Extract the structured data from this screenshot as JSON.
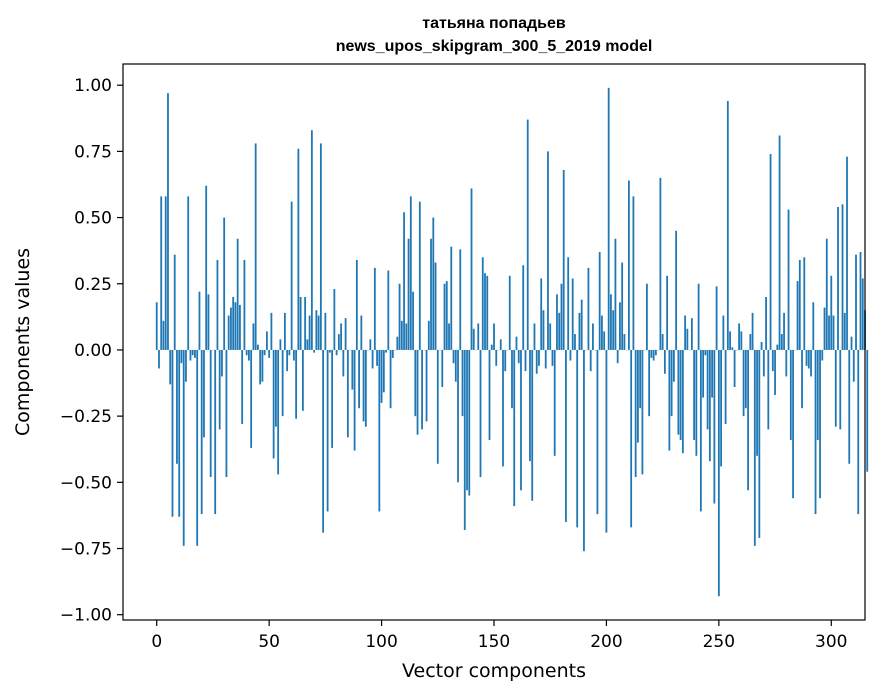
{
  "chart_data": {
    "type": "bar",
    "title": "татьяна попадьев",
    "subtitle": "news_upos_skipgram_300_5_2019 model",
    "xlabel": "Vector components",
    "ylabel": "Components values",
    "xlim": [
      -15,
      315
    ],
    "ylim": [
      -1.02,
      1.08
    ],
    "x_ticks": [
      "0",
      "50",
      "100",
      "150",
      "200",
      "250",
      "300"
    ],
    "x_tick_values": [
      0,
      50,
      100,
      150,
      200,
      250,
      300
    ],
    "y_ticks": [
      "1.00",
      "0.75",
      "0.50",
      "0.25",
      "0.00",
      "−0.25",
      "−0.50",
      "−0.75",
      "−1.00"
    ],
    "y_tick_values": [
      1.0,
      0.75,
      0.5,
      0.25,
      0.0,
      -0.25,
      -0.5,
      -0.75,
      -1.0
    ],
    "grid": false,
    "bar_color": "#1f77b4",
    "values": [
      0.18,
      -0.07,
      0.58,
      0.11,
      0.58,
      0.97,
      -0.13,
      -0.63,
      0.36,
      -0.43,
      -0.63,
      -0.05,
      -0.74,
      -0.12,
      0.58,
      -0.04,
      -0.02,
      -0.03,
      -0.74,
      0.22,
      -0.62,
      -0.33,
      0.62,
      0.21,
      -0.48,
      0.0,
      -0.62,
      0.34,
      -0.3,
      -0.1,
      0.5,
      -0.48,
      0.13,
      0.16,
      0.2,
      0.18,
      0.42,
      0.17,
      -0.28,
      0.34,
      -0.02,
      -0.04,
      -0.37,
      0.1,
      0.78,
      0.02,
      -0.13,
      -0.12,
      -0.02,
      0.07,
      -0.03,
      0.14,
      -0.41,
      -0.29,
      -0.47,
      0.04,
      -0.25,
      0.14,
      -0.08,
      -0.02,
      0.56,
      -0.04,
      -0.26,
      0.76,
      0.2,
      -0.23,
      0.2,
      0.04,
      0.13,
      0.83,
      -0.01,
      0.15,
      0.13,
      0.78,
      -0.69,
      0.14,
      -0.61,
      -0.01,
      -0.37,
      0.23,
      -0.02,
      0.06,
      0.1,
      -0.1,
      0.12,
      -0.33,
      0.0,
      -0.15,
      -0.38,
      0.34,
      -0.22,
      0.13,
      -0.27,
      -0.29,
      0.0,
      0.04,
      -0.07,
      0.31,
      -0.06,
      -0.61,
      -0.2,
      -0.16,
      -0.01,
      0.3,
      -0.22,
      -0.03,
      0.0,
      0.05,
      0.25,
      0.11,
      0.52,
      0.1,
      0.42,
      0.58,
      0.22,
      -0.25,
      -0.32,
      0.56,
      -0.3,
      0.0,
      -0.27,
      0.11,
      0.42,
      0.5,
      0.33,
      -0.43,
      0.0,
      -0.14,
      0.25,
      0.26,
      0.1,
      0.39,
      -0.05,
      -0.12,
      -0.5,
      0.38,
      -0.25,
      -0.68,
      -0.53,
      -0.55,
      0.61,
      0.08,
      0.0,
      0.1,
      -0.48,
      0.35,
      0.29,
      0.28,
      -0.34,
      0.02,
      0.1,
      -0.06,
      0.0,
      0.04,
      -0.44,
      -0.08,
      0.0,
      0.28,
      -0.22,
      -0.59,
      0.05,
      -0.05,
      -0.53,
      0.32,
      -0.08,
      0.87,
      -0.42,
      -0.57,
      0.1,
      -0.09,
      -0.06,
      0.27,
      0.15,
      -0.07,
      0.75,
      0.1,
      -0.06,
      -0.4,
      0.21,
      0.14,
      0.25,
      0.68,
      -0.65,
      0.35,
      -0.04,
      0.27,
      0.06,
      -0.67,
      0.14,
      0.19,
      -0.76,
      0.0,
      0.31,
      -0.08,
      0.1,
      0.0,
      -0.62,
      0.37,
      0.13,
      0.07,
      -0.69,
      0.99,
      0.21,
      0.15,
      0.42,
      -0.05,
      0.18,
      0.33,
      0.06,
      0.0,
      0.64,
      -0.67,
      0.58,
      -0.48,
      -0.35,
      -0.22,
      -0.47,
      0.0,
      0.25,
      -0.25,
      -0.03,
      -0.04,
      -0.02,
      0.0,
      0.65,
      0.06,
      -0.09,
      0.28,
      -0.38,
      -0.25,
      -0.12,
      0.45,
      -0.32,
      -0.34,
      -0.39,
      0.13,
      0.08,
      0.0,
      0.12,
      -0.34,
      -0.4,
      0.25,
      -0.61,
      -0.18,
      -0.02,
      -0.3,
      -0.42,
      -0.18,
      -0.58,
      0.24,
      -0.93,
      -0.44,
      0.13,
      -0.28,
      0.94,
      0.07,
      0.01,
      -0.14,
      0.0,
      0.1,
      0.07,
      -0.25,
      -0.22,
      -0.53,
      0.06,
      0.14,
      -0.74,
      -0.4,
      -0.71,
      0.03,
      -0.1,
      0.2,
      -0.3,
      0.74,
      -0.08,
      -0.17,
      0.02,
      0.81,
      0.06,
      0.14,
      -0.1,
      0.53,
      -0.34,
      -0.56,
      0.0,
      0.26,
      0.34,
      -0.22,
      0.35,
      -0.06,
      -0.07,
      -0.1,
      0.18,
      -0.62,
      -0.34,
      -0.56,
      -0.04,
      0.16,
      0.42,
      0.13,
      0.28,
      0.13,
      -0.29,
      0.54,
      -0.3,
      0.55,
      0.14,
      0.73,
      -0.43,
      0.05,
      -0.12,
      0.36,
      -0.62,
      0.37,
      0.27,
      0.15,
      -0.46
    ]
  }
}
